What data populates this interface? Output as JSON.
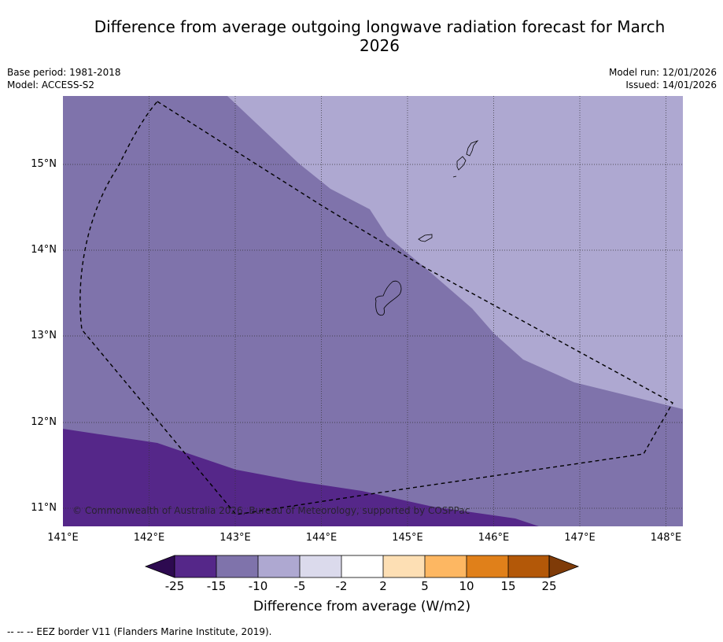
{
  "title": "Difference from average outgoing longwave radiation forecast for March 2026",
  "meta": {
    "base_period": "Base period: 1981-2018",
    "model": "Model: ACCESS-S2",
    "model_run": "Model run: 12/01/2026",
    "issued": "Issued: 14/01/2026"
  },
  "map": {
    "copyright": "© Commonwealth of Australia 2026, Bureau of Meteorology, supported by COSPPac",
    "lat_labels": [
      "15°N",
      "14°N",
      "13°N",
      "12°N",
      "11°N"
    ],
    "lon_labels": [
      "141°E",
      "142°E",
      "143°E",
      "144°E",
      "145°E",
      "146°E",
      "147°E",
      "148°E"
    ],
    "extent": {
      "lon_min": 141.0,
      "lon_max": 148.2,
      "lat_min": 10.8,
      "lat_max": 15.8
    },
    "regions": [
      {
        "category": "-10 to -5",
        "color": "#aea8d1"
      },
      {
        "category": "-15 to -10",
        "color": "#7f73ab"
      },
      {
        "category": "-25 to -15",
        "color": "#552789"
      }
    ]
  },
  "colorbar": {
    "label": "Difference from average (W/m2)",
    "ticks": [
      "-25",
      "-15",
      "-10",
      "-5",
      "-2",
      "2",
      "5",
      "10",
      "15",
      "25"
    ],
    "colors": [
      "#552789",
      "#7f73ab",
      "#aea8d1",
      "#dbdaec",
      "#ffffff",
      "#fddfb4",
      "#fdb762",
      "#e0801a",
      "#b35808"
    ],
    "extend_low_color": "#2d0a50",
    "extend_high_color": "#7f3b08"
  },
  "footnote": "--  --  -- EEZ border V11 (Flanders Marine Institute, 2019)."
}
